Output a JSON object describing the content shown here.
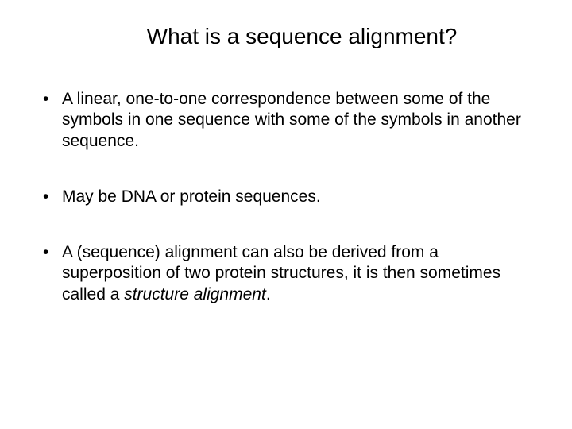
{
  "slide": {
    "title": "What is a sequence alignment?",
    "bullets": [
      {
        "text": "A linear, one-to-one correspondence between some of the symbols in one sequence with some of the symbols in another sequence."
      },
      {
        "text": "May be DNA or protein sequences."
      },
      {
        "prefix": "A (sequence) alignment can also be derived from a superposition of two protein structures, it is then sometimes called a ",
        "emphasis": "structure alignment",
        "suffix": "."
      }
    ],
    "styling": {
      "background_color": "#ffffff",
      "text_color": "#000000",
      "title_fontsize": 28,
      "body_fontsize": 21,
      "font_family": "Arial",
      "slide_width": 720,
      "slide_height": 540
    }
  }
}
